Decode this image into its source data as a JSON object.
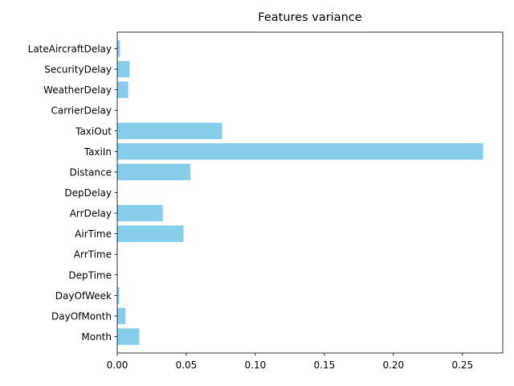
{
  "chart_data": {
    "type": "bar",
    "orientation": "horizontal",
    "title": "Features variance",
    "xlabel": "",
    "ylabel": "",
    "categories": [
      "Month",
      "DayOfMonth",
      "DayOfWeek",
      "DepTime",
      "ArrTime",
      "AirTime",
      "ArrDelay",
      "DepDelay",
      "Distance",
      "TaxiIn",
      "TaxiOut",
      "CarrierDelay",
      "WeatherDelay",
      "SecurityDelay",
      "LateAircraftDelay"
    ],
    "values": [
      0.016,
      0.006,
      0.0015,
      0.0,
      0.0,
      0.048,
      0.033,
      0.0,
      0.053,
      0.265,
      0.076,
      0.0,
      0.008,
      0.009,
      0.002
    ],
    "xlim": [
      0,
      0.2792
    ],
    "xticks": [
      "0.00",
      "0.05",
      "0.10",
      "0.15",
      "0.20",
      "0.25"
    ],
    "bar_color": "#87CEEB",
    "grid": false,
    "legend": "none"
  }
}
